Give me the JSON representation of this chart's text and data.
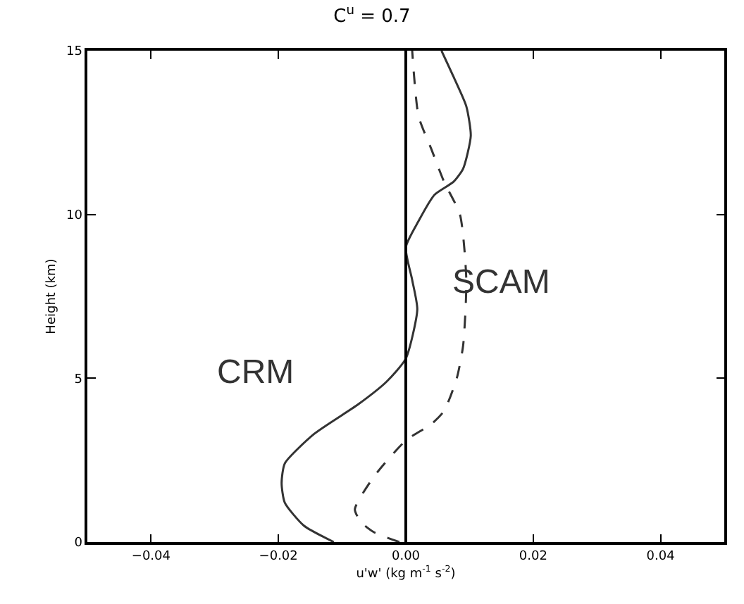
{
  "chart_data": {
    "type": "line",
    "title": "C$^{u}$ = 0.7",
    "xlabel": "u'w' (kg m$^{-1}$ s$^{-2}$)",
    "ylabel": "Height (km)",
    "xlim": [
      -0.05,
      0.05
    ],
    "xticks": [
      {
        "value": -0.04,
        "label": "−0.04"
      },
      {
        "value": -0.02,
        "label": "−0.02"
      },
      {
        "value": 0,
        "label": "0.00"
      },
      {
        "value": 0.02,
        "label": "0.02"
      },
      {
        "value": 0.04,
        "label": "0.04"
      }
    ],
    "ylim": [
      0,
      15
    ],
    "yticks": [
      0,
      5,
      10,
      15
    ],
    "legend": false,
    "marker": "none",
    "ref_lines": [
      {
        "axis": "x",
        "value": 0,
        "color": "#000000",
        "line_style": "solid"
      }
    ],
    "series": [
      {
        "name": "CRM",
        "color": "#333333",
        "line_style": "solid",
        "x": [
          -0.0113,
          -0.016,
          -0.019,
          -0.0195,
          -0.019,
          -0.0144,
          -0.0075,
          -0.003,
          0,
          0.0018,
          0.001,
          0,
          0.002,
          0.0045,
          0.0075,
          0.009,
          0.0102,
          0.0095,
          0.0075,
          0.0056
        ],
        "values": [
          0,
          0.5,
          1.2,
          1.8,
          2.4,
          3.3,
          4.2,
          4.9,
          5.6,
          7.1,
          8.0,
          9.0,
          9.8,
          10.6,
          11.0,
          11.4,
          12.4,
          13.3,
          14.2,
          15
        ]
      },
      {
        "name": "SCAM",
        "color": "#333333",
        "line_style": "dashed",
        "x": [
          -0.001,
          -0.005,
          -0.007,
          -0.008,
          -0.005,
          0,
          0.004,
          0.006,
          0.008,
          0.009,
          0.0095,
          0.0085,
          0.006,
          0.004,
          0.002,
          0.001
        ],
        "values": [
          0,
          0.3,
          0.6,
          1.0,
          2.0,
          3.1,
          3.6,
          4.0,
          5.0,
          6.0,
          8.0,
          10.0,
          11.0,
          12.0,
          13.0,
          15
        ]
      }
    ]
  }
}
